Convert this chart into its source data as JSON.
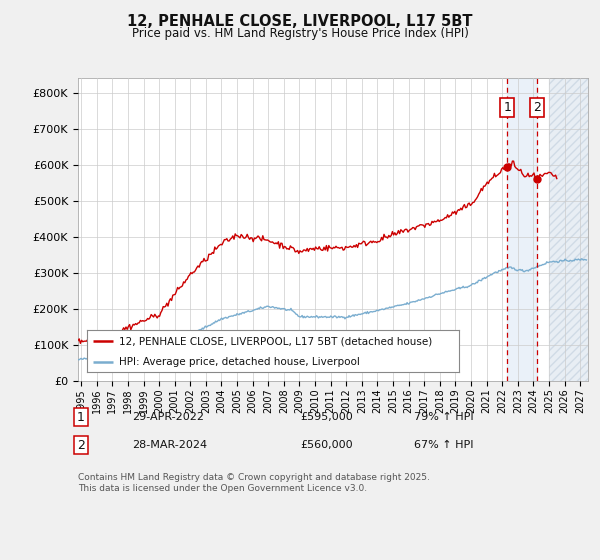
{
  "title": "12, PENHALE CLOSE, LIVERPOOL, L17 5BT",
  "subtitle": "Price paid vs. HM Land Registry's House Price Index (HPI)",
  "yticks": [
    0,
    100000,
    200000,
    300000,
    400000,
    500000,
    600000,
    700000,
    800000
  ],
  "ytick_labels": [
    "£0",
    "£100K",
    "£200K",
    "£300K",
    "£400K",
    "£500K",
    "£600K",
    "£700K",
    "£800K"
  ],
  "ylim": [
    0,
    840000
  ],
  "xlim_start": 1994.8,
  "xlim_end": 2027.5,
  "xticks": [
    1995,
    1996,
    1997,
    1998,
    1999,
    2000,
    2001,
    2002,
    2003,
    2004,
    2005,
    2006,
    2007,
    2008,
    2009,
    2010,
    2011,
    2012,
    2013,
    2014,
    2015,
    2016,
    2017,
    2018,
    2019,
    2020,
    2021,
    2022,
    2023,
    2024,
    2025,
    2026,
    2027
  ],
  "legend_label_red": "12, PENHALE CLOSE, LIVERPOOL, L17 5BT (detached house)",
  "legend_label_blue": "HPI: Average price, detached house, Liverpool",
  "ann1_num": "1",
  "ann1_date": "29-APR-2022",
  "ann1_price": "£595,000",
  "ann1_pct": "79% ↑ HPI",
  "ann2_num": "2",
  "ann2_date": "28-MAR-2024",
  "ann2_price": "£560,000",
  "ann2_pct": "67% ↑ HPI",
  "vline1_x": 2022.33,
  "vline2_x": 2024.25,
  "marker1_y": 595000,
  "marker2_y": 560000,
  "future_start": 2025.0,
  "footer": "Contains HM Land Registry data © Crown copyright and database right 2025.\nThis data is licensed under the Open Government Licence v3.0.",
  "bg_color": "#f0f0f0",
  "plot_bg": "#ffffff",
  "grid_color": "#cccccc",
  "red_color": "#cc0000",
  "blue_color": "#7aadcf",
  "shade_color": "#dce9f5",
  "hatch_color": "#d0d8e0"
}
